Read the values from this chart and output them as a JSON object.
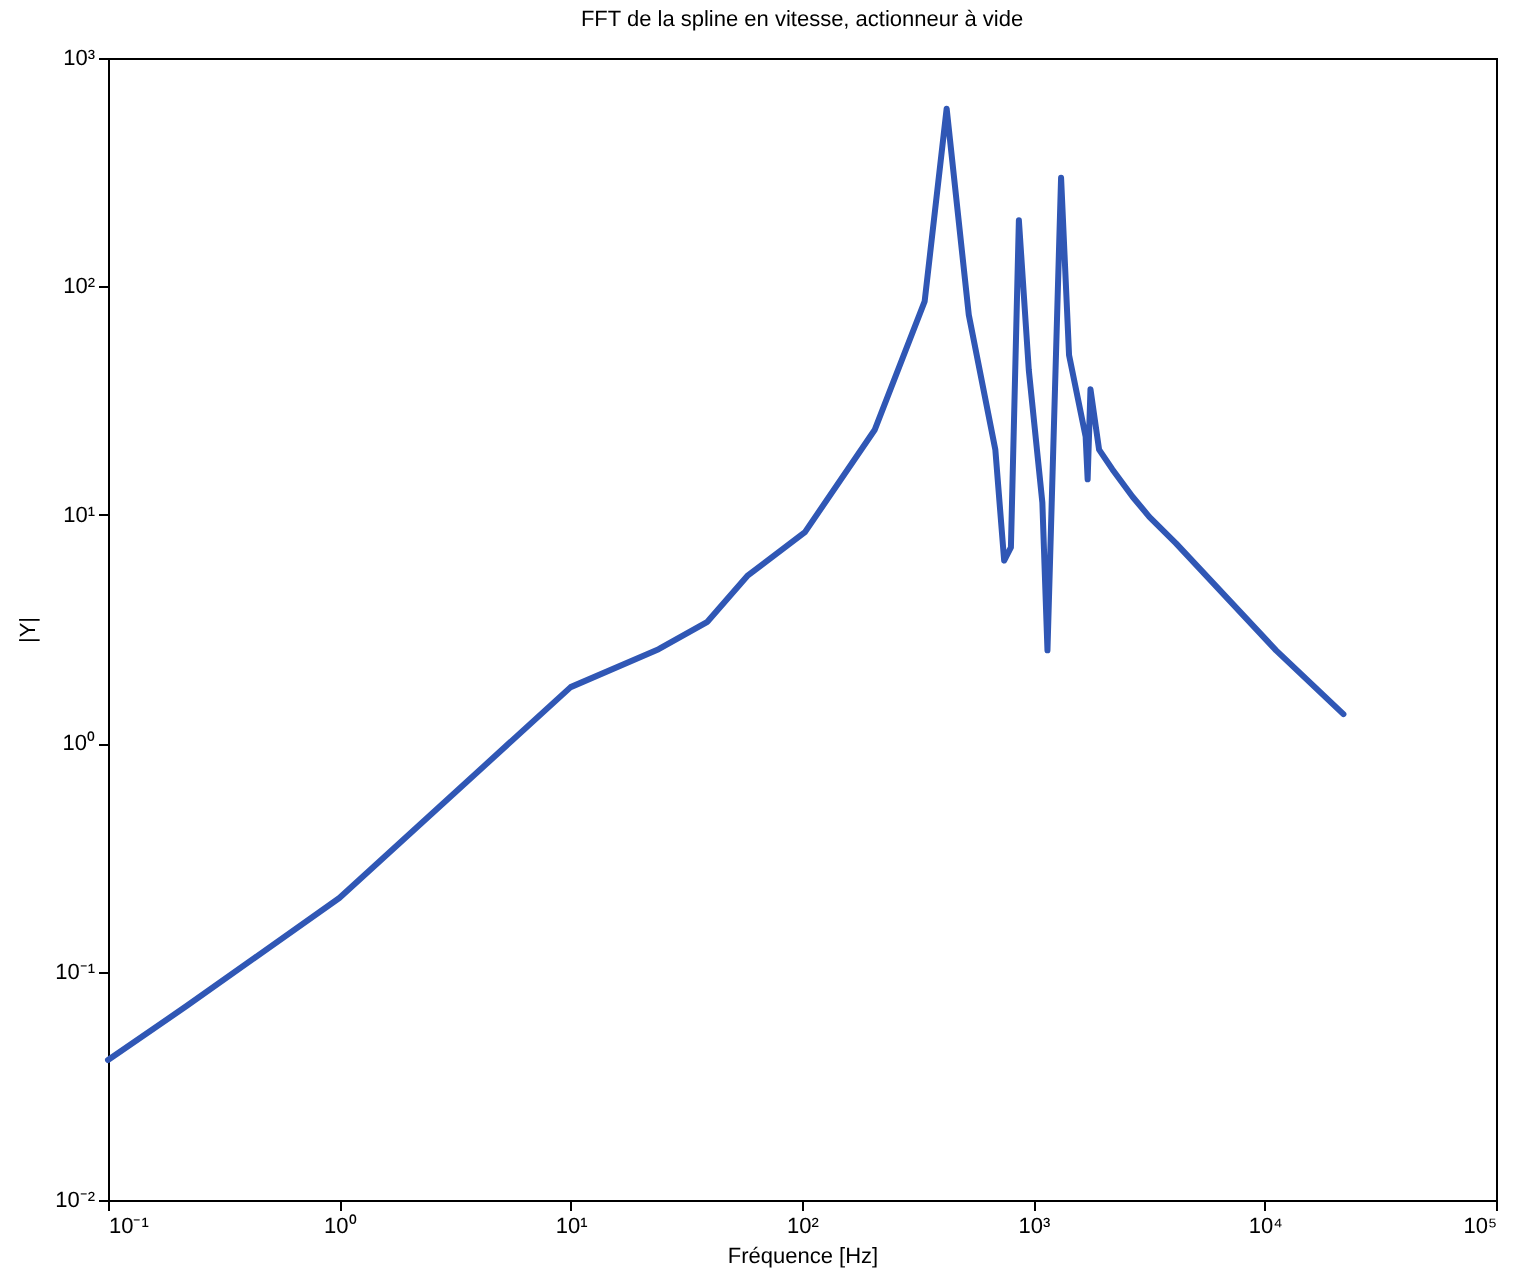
{
  "chart_data": {
    "type": "line",
    "title": "FFT de la spline en vitesse, actionneur à vide",
    "xlabel": "Fréquence [Hz]",
    "ylabel": "|Y|",
    "log": "xy",
    "grid": false,
    "marker": "none",
    "line_style": "solid",
    "xlim": [
      0.1,
      100000
    ],
    "ylim": [
      0.01,
      1000
    ],
    "xticks": [
      {
        "value": 0.1,
        "label": "10⁻¹"
      },
      {
        "value": 1,
        "label": "10⁰"
      },
      {
        "value": 10,
        "label": "10¹"
      },
      {
        "value": 100,
        "label": "10²"
      },
      {
        "value": 1000,
        "label": "10³"
      },
      {
        "value": 10000,
        "label": "10⁴"
      },
      {
        "value": 100000,
        "label": "10⁵"
      }
    ],
    "yticks": [
      {
        "value": 0.01,
        "label": "10⁻²"
      },
      {
        "value": 0.1,
        "label": "10⁻¹"
      },
      {
        "value": 1,
        "label": "10⁰"
      },
      {
        "value": 10,
        "label": "10¹"
      },
      {
        "value": 100,
        "label": "10²"
      },
      {
        "value": 1000,
        "label": "10³"
      }
    ],
    "series": [
      {
        "color": "#3057b5",
        "x": [
          0.1,
          0.22,
          1,
          10,
          24,
          39,
          58,
          103,
          206,
          339,
          422,
          526,
          685,
          748,
          800,
          866,
          956,
          1094,
          1151,
          1318,
          1427,
          1683,
          1717,
          1766,
          1924,
          2198,
          2685,
          3172,
          4138,
          11200,
          21900
        ],
        "values": [
          0.041,
          0.071,
          0.21,
          1.76,
          2.58,
          3.4,
          5.4,
          8.4,
          23.5,
          86,
          600,
          75,
          19.3,
          6.3,
          7.2,
          195,
          43,
          11.3,
          2.55,
          299,
          50,
          22,
          14.3,
          35.5,
          19.3,
          15.8,
          12,
          9.8,
          7.5,
          2.55,
          1.34
        ]
      }
    ]
  }
}
